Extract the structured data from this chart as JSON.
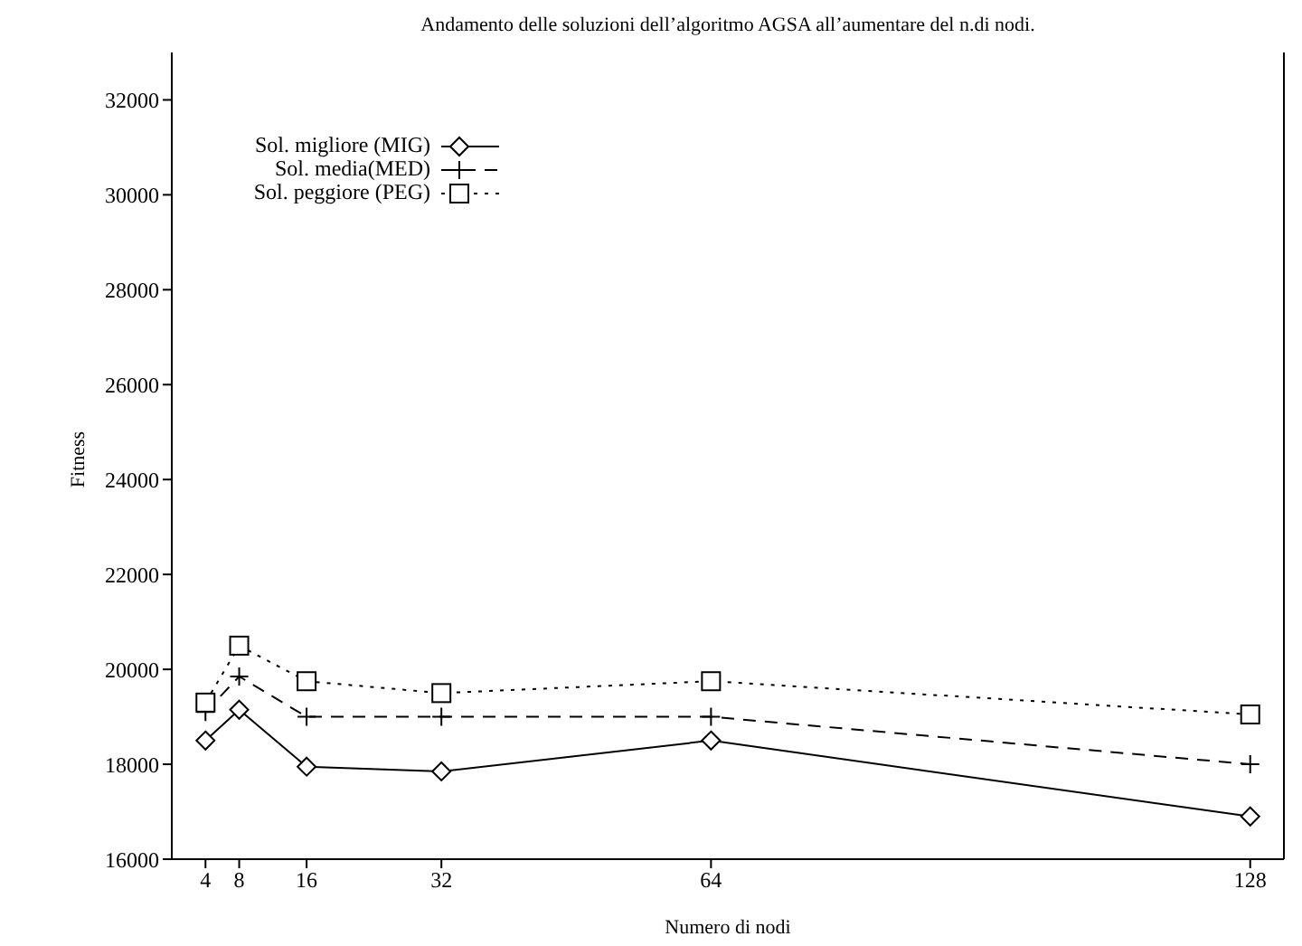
{
  "chart_data": {
    "type": "line",
    "title": "Andamento delle soluzioni dell’algoritmo AGSA all’aumentare del n.di nodi.",
    "xlabel": "Numero di nodi",
    "ylabel": "Fitness",
    "x": [
      4,
      8,
      16,
      32,
      64,
      128
    ],
    "xlim": [
      0,
      132
    ],
    "xticks": [
      4,
      8,
      16,
      32,
      64,
      128
    ],
    "ylim": [
      16000,
      33000
    ],
    "yticks": [
      16000,
      18000,
      20000,
      22000,
      24000,
      26000,
      28000,
      30000,
      32000
    ],
    "grid": false,
    "legend": "top left",
    "series": [
      {
        "name": "Sol. migliore (MIG)",
        "color": "#000000",
        "marker": "diamond",
        "line_style": "solid",
        "values": [
          18500,
          19150,
          17950,
          17850,
          18500,
          16900
        ]
      },
      {
        "name": "Sol. media(MED)",
        "color": "#000000",
        "marker": "cross",
        "line_style": "dashed",
        "values": [
          19100,
          19850,
          19000,
          19000,
          19000,
          18000
        ]
      },
      {
        "name": "Sol. peggiore (PEG)",
        "color": "#000000",
        "marker": "square",
        "line_style": "dotted",
        "values": [
          19300,
          20500,
          19750,
          19500,
          19750,
          19050
        ]
      }
    ]
  }
}
